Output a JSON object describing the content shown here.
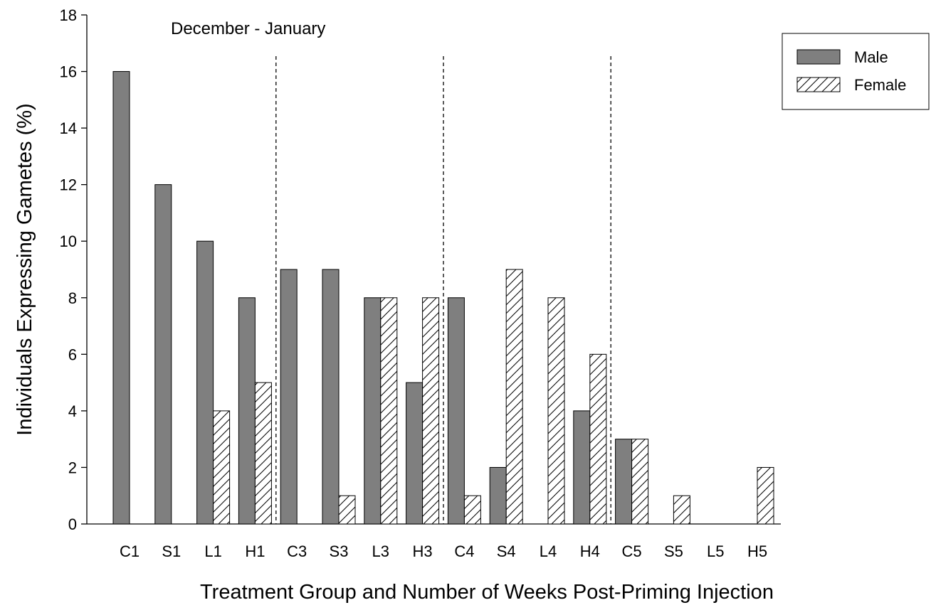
{
  "chart_data": {
    "type": "bar",
    "annotation": "December - January",
    "xlabel": "Treatment Group and Number of Weeks Post-Priming Injection",
    "ylabel": "Individuals Expressing Gametes (%)",
    "ylim": [
      0,
      18
    ],
    "yticks": [
      0,
      2,
      4,
      6,
      8,
      10,
      12,
      14,
      16,
      18
    ],
    "categories": [
      "C1",
      "S1",
      "L1",
      "H1",
      "C3",
      "S3",
      "L3",
      "H3",
      "C4",
      "S4",
      "L4",
      "H4",
      "C5",
      "S5",
      "L5",
      "H5"
    ],
    "series": [
      {
        "name": "Male",
        "color": "#7f7f7f",
        "pattern": "solid",
        "values": [
          16,
          12,
          10,
          8,
          9,
          9,
          8,
          5,
          8,
          2,
          0,
          4,
          3,
          0,
          0,
          0
        ]
      },
      {
        "name": "Female",
        "color": "#ffffff",
        "pattern": "diagonal-hatch",
        "values": [
          0,
          0,
          4,
          5,
          0,
          1,
          8,
          8,
          1,
          9,
          8,
          6,
          3,
          1,
          0,
          2
        ]
      }
    ],
    "separators_after_category_index": [
      3,
      7,
      11
    ],
    "legend_position": "top-right",
    "grid": false
  }
}
